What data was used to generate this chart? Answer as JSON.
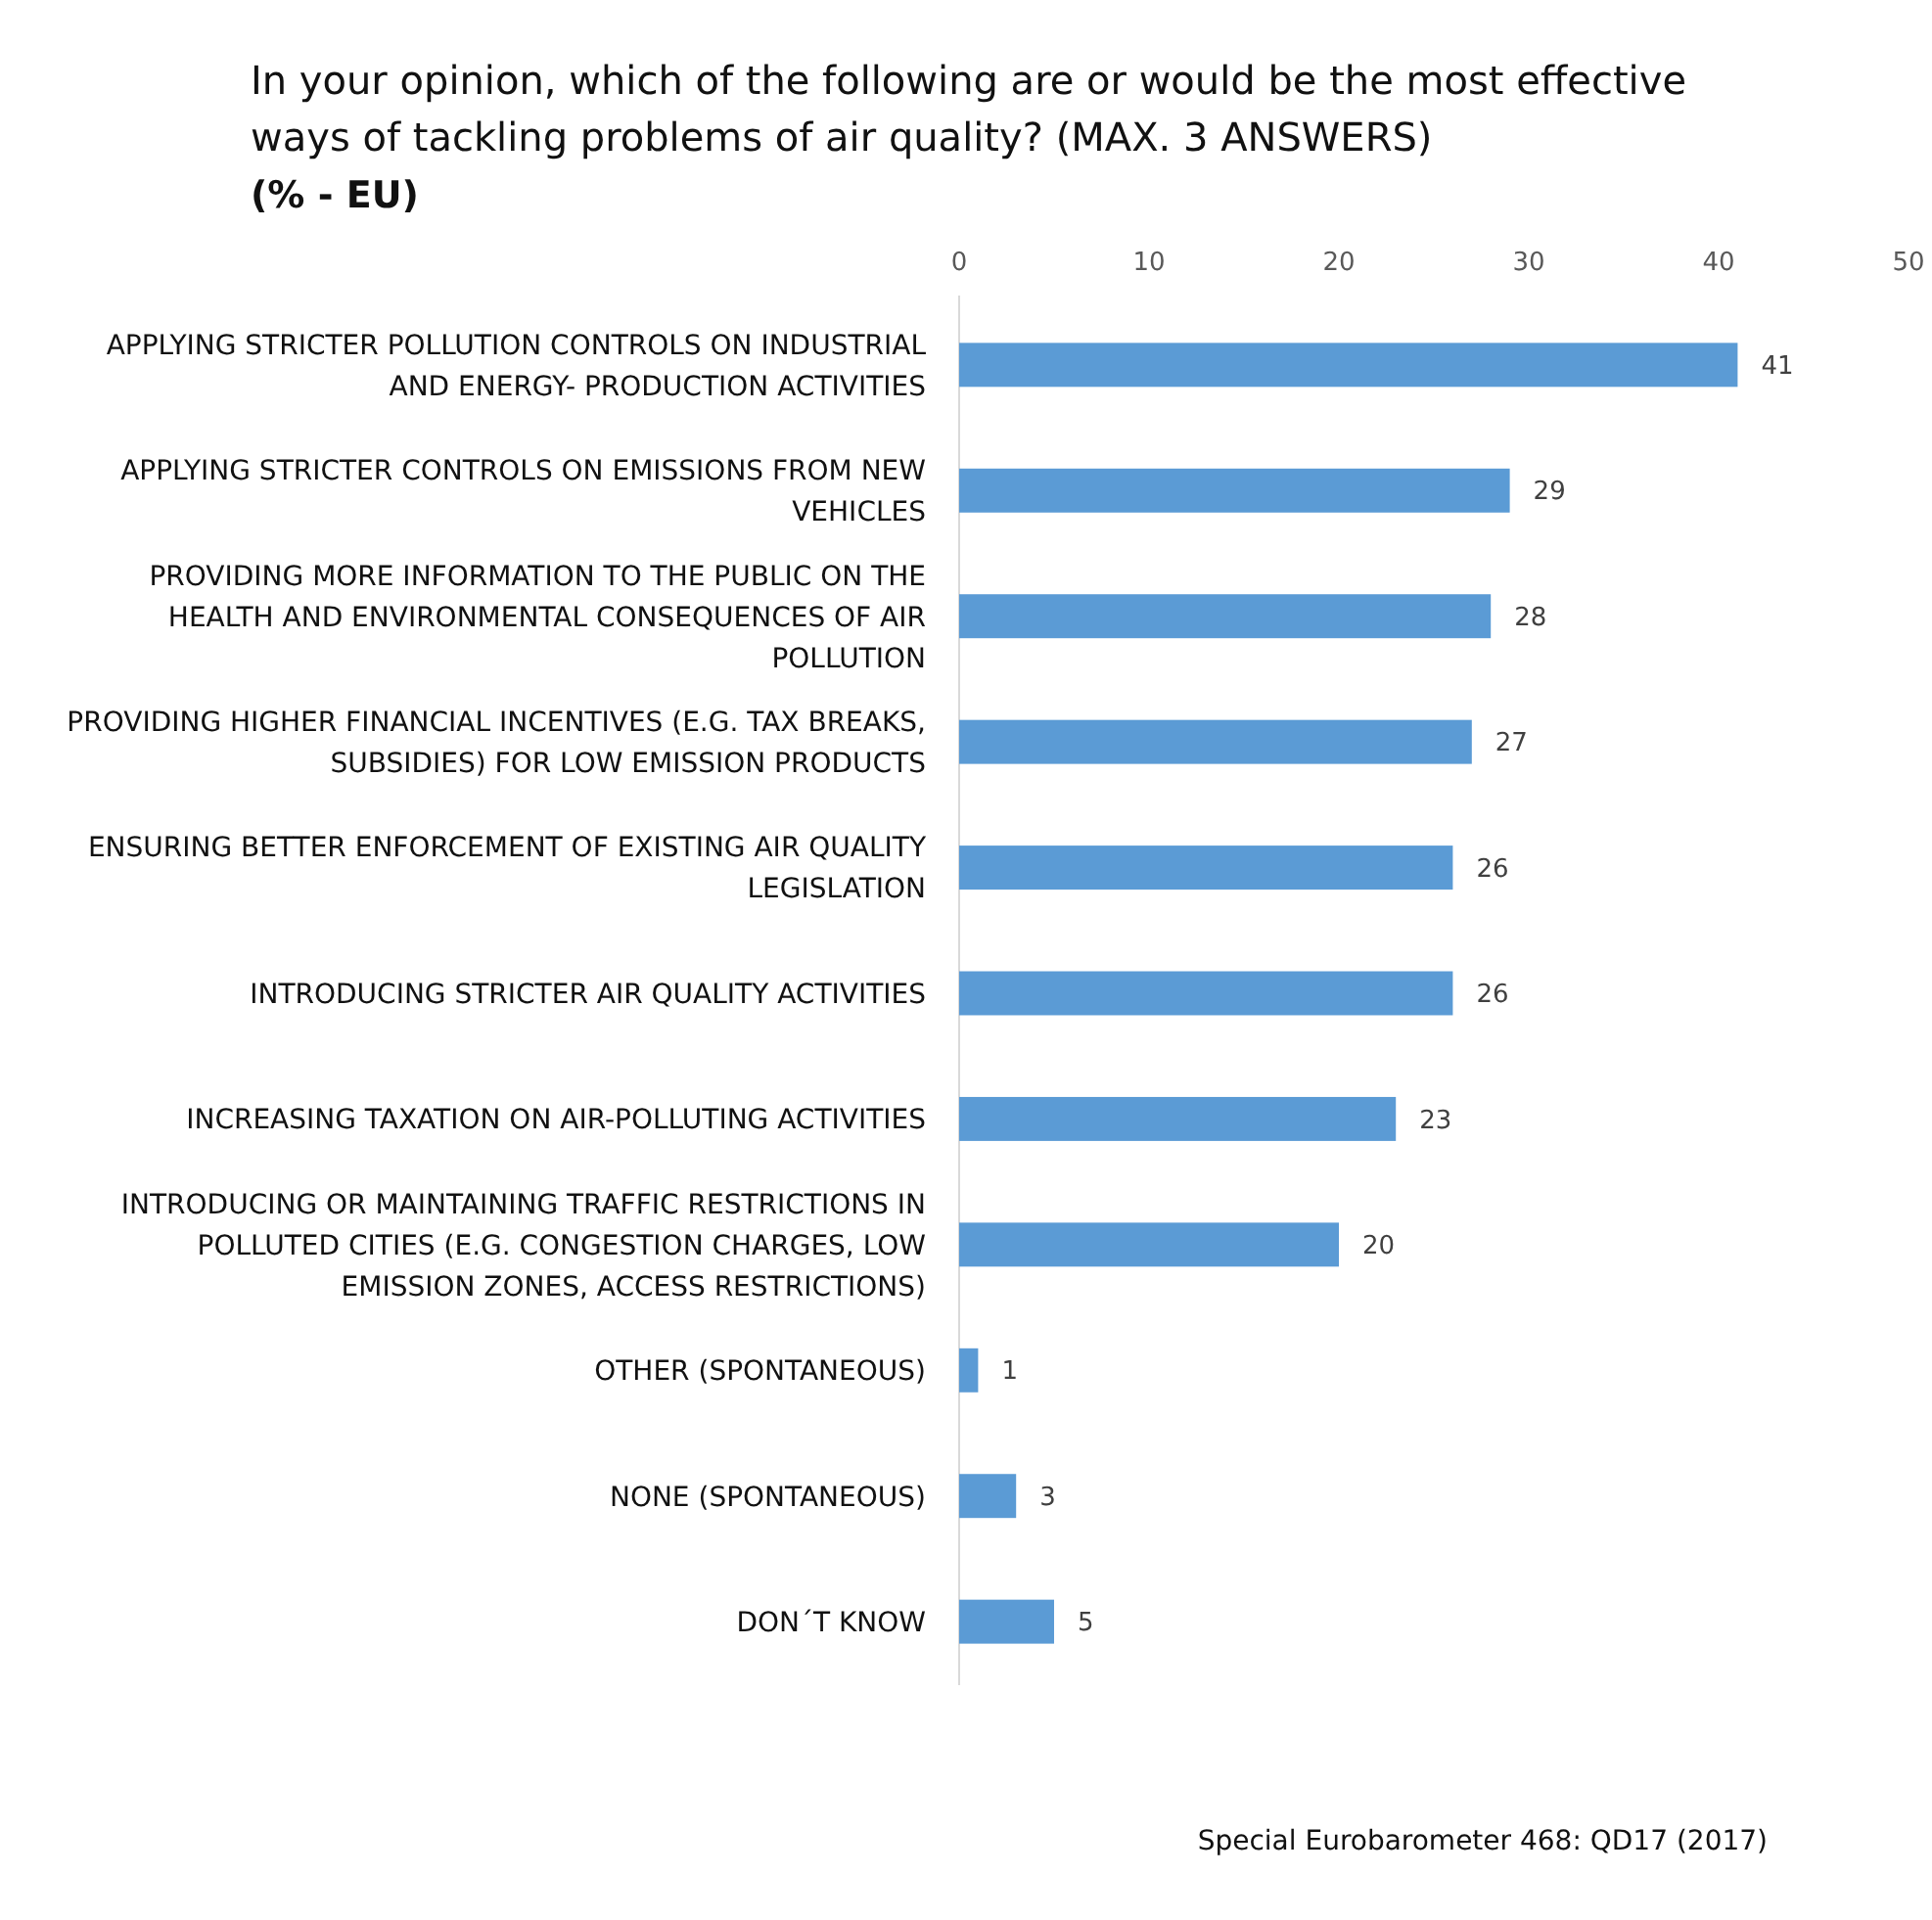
{
  "chart_data": {
    "type": "bar",
    "orientation": "horizontal",
    "title": "In your opinion, which of the following are or would  be the most effective ways of tackling problems of air quality? (MAX. 3 ANSWERS)",
    "subtitle": "(% - EU)",
    "categories": [
      "APPLYING STRICTER POLLUTION CONTROLS ON INDUSTRIAL AND ENERGY- PRODUCTION ACTIVITIES",
      "APPLYING STRICTER CONTROLS ON EMISSIONS FROM NEW VEHICLES",
      "PROVIDING MORE INFORMATION TO THE PUBLIC ON THE HEALTH AND ENVIRONMENTAL CONSEQUENCES OF AIR POLLUTION",
      "PROVIDING HIGHER FINANCIAL INCENTIVES (E.G. TAX BREAKS, SUBSIDIES) FOR LOW EMISSION PRODUCTS",
      "ENSURING BETTER ENFORCEMENT OF EXISTING AIR QUALITY LEGISLATION",
      "INTRODUCING STRICTER AIR QUALITY ACTIVITIES",
      "INCREASING TAXATION ON AIR-POLLUTING ACTIVITIES",
      "INTRODUCING OR MAINTAINING TRAFFIC RESTRICTIONS IN POLLUTED CITIES (E.G. CONGESTION CHARGES, LOW EMISSION ZONES, ACCESS RESTRICTIONS)",
      "OTHER (SPONTANEOUS)",
      "NONE (SPONTANEOUS)",
      "DON´T KNOW"
    ],
    "values": [
      41,
      29,
      28,
      27,
      26,
      26,
      23,
      20,
      1,
      3,
      5
    ],
    "color": "#5b9bd5",
    "xlim": [
      0,
      50
    ],
    "xticks": [
      0,
      10,
      20,
      30,
      40,
      50
    ],
    "data_labels": true,
    "annotations": [
      "Special Eurobarometer 468: QD17 (2017)"
    ]
  }
}
